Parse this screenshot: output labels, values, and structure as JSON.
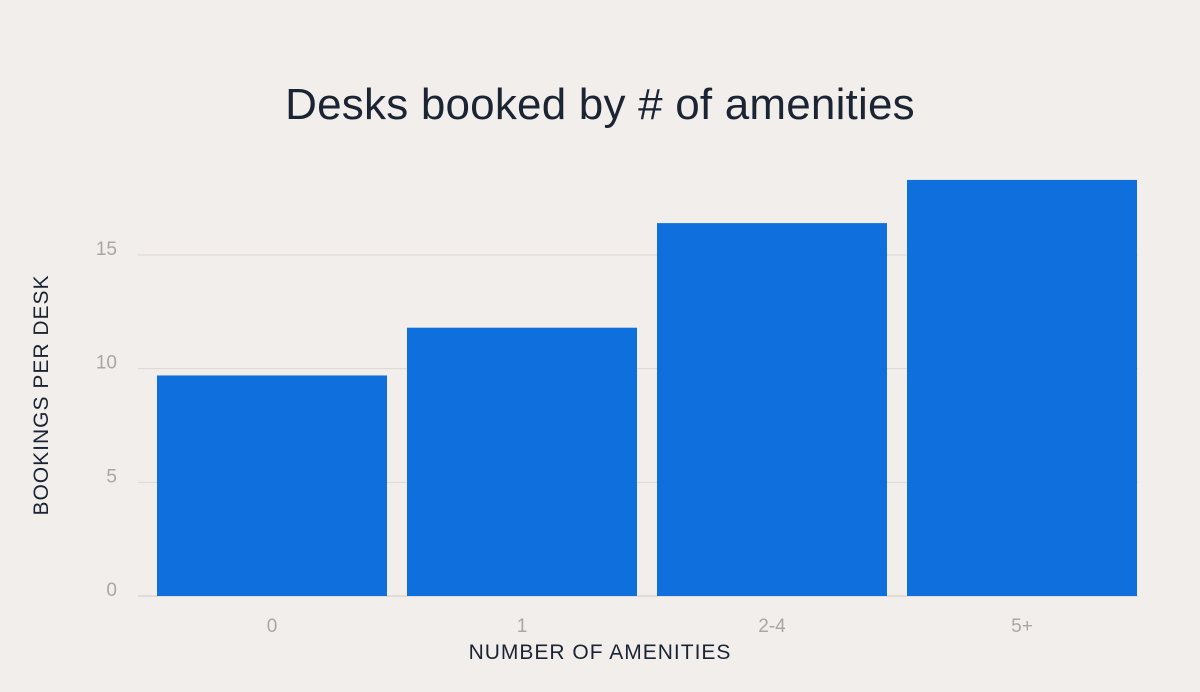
{
  "chart_data": {
    "type": "bar",
    "title": "Desks booked by # of amenities",
    "xlabel": "NUMBER OF AMENITIES",
    "ylabel": "BOOKINGS PER DESK",
    "categories": [
      "0",
      "1",
      "2-4",
      "5+"
    ],
    "values": [
      9.7,
      11.8,
      16.4,
      18.3
    ],
    "ylim": [
      0,
      19
    ],
    "yticks": [
      0,
      5,
      10,
      15
    ],
    "grid": true,
    "bar_color": "#0f70dd"
  }
}
